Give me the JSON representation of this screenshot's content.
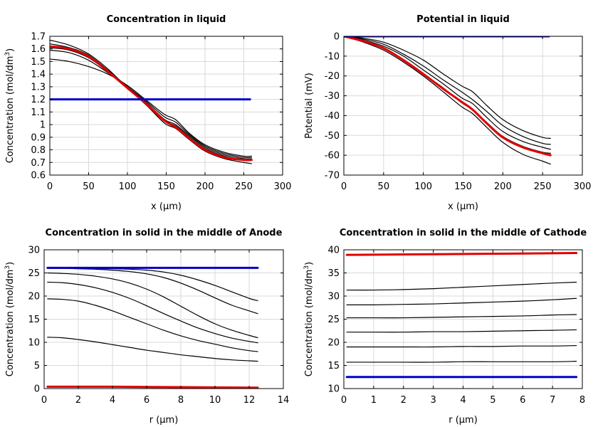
{
  "chart_data": [
    {
      "type": "line",
      "title": "Concentration in liquid",
      "xlabel": "x (µm)",
      "ylabel": "Concentration (mol/dm³)",
      "xlim": [
        0,
        300
      ],
      "ylim": [
        0.6,
        1.7
      ],
      "xticks": [
        0,
        50,
        100,
        150,
        200,
        250,
        300
      ],
      "yticks": [
        0.6,
        0.7,
        0.8,
        0.9,
        1,
        1.1,
        1.2,
        1.3,
        1.4,
        1.5,
        1.6,
        1.7
      ],
      "grid": true,
      "series": [
        {
          "color": "#000000",
          "width": 1.2,
          "x": [
            0,
            25,
            50,
            75,
            100,
            125,
            148,
            162,
            180,
            200,
            225,
            250,
            260
          ],
          "y": [
            1.52,
            1.5,
            1.46,
            1.4,
            1.31,
            1.19,
            1.08,
            1.04,
            0.93,
            0.84,
            0.78,
            0.75,
            0.75
          ]
        },
        {
          "color": "#000000",
          "width": 1.2,
          "x": [
            0,
            25,
            50,
            75,
            100,
            125,
            148,
            162,
            180,
            200,
            225,
            250,
            260
          ],
          "y": [
            1.59,
            1.57,
            1.51,
            1.41,
            1.3,
            1.18,
            1.06,
            1.02,
            0.92,
            0.83,
            0.77,
            0.74,
            0.74
          ]
        },
        {
          "color": "#000000",
          "width": 1.2,
          "x": [
            0,
            25,
            50,
            75,
            100,
            125,
            148,
            162,
            180,
            200,
            225,
            250,
            260
          ],
          "y": [
            1.61,
            1.59,
            1.53,
            1.42,
            1.3,
            1.17,
            1.04,
            1.0,
            0.91,
            0.82,
            0.76,
            0.73,
            0.73
          ]
        },
        {
          "color": "#000000",
          "width": 1.2,
          "x": [
            0,
            25,
            50,
            75,
            100,
            125,
            148,
            162,
            180,
            200,
            225,
            250,
            260
          ],
          "y": [
            1.64,
            1.61,
            1.55,
            1.43,
            1.3,
            1.16,
            1.03,
            0.99,
            0.9,
            0.81,
            0.75,
            0.72,
            0.72
          ]
        },
        {
          "color": "#000000",
          "width": 1.2,
          "x": [
            0,
            25,
            50,
            75,
            100,
            125,
            148,
            162,
            180,
            200,
            225,
            250,
            260
          ],
          "y": [
            1.67,
            1.63,
            1.56,
            1.44,
            1.29,
            1.15,
            1.01,
            0.97,
            0.88,
            0.79,
            0.73,
            0.7,
            0.69
          ]
        },
        {
          "color": "#e00000",
          "width": 3,
          "x": [
            0,
            25,
            50,
            75,
            100,
            125,
            148,
            162,
            180,
            200,
            225,
            250,
            260
          ],
          "y": [
            1.62,
            1.6,
            1.54,
            1.42,
            1.29,
            1.16,
            1.03,
            0.98,
            0.89,
            0.8,
            0.74,
            0.72,
            0.72
          ]
        },
        {
          "color": "#0000cc",
          "width": 3,
          "x": [
            0,
            50,
            100,
            150,
            200,
            250,
            258
          ],
          "y": [
            1.2,
            1.2,
            1.2,
            1.2,
            1.2,
            1.2,
            1.2
          ]
        }
      ]
    },
    {
      "type": "line",
      "title": "Potential in liquid",
      "xlabel": "x (µm)",
      "ylabel": "Potential (mV)",
      "xlim": [
        0,
        300
      ],
      "ylim": [
        -70,
        0
      ],
      "xticks": [
        0,
        50,
        100,
        150,
        200,
        250,
        300
      ],
      "yticks": [
        0,
        -10,
        -20,
        -30,
        -40,
        -50,
        -60,
        -70
      ],
      "grid": true,
      "series": [
        {
          "color": "#000000",
          "width": 1.2,
          "x": [
            0,
            25,
            50,
            75,
            100,
            125,
            148,
            162,
            180,
            200,
            225,
            250,
            260
          ],
          "y": [
            0,
            -1,
            -3,
            -7,
            -12,
            -19,
            -25,
            -28,
            -35,
            -42,
            -47.5,
            -51,
            -51.5
          ]
        },
        {
          "color": "#000000",
          "width": 1.2,
          "x": [
            0,
            25,
            50,
            75,
            100,
            125,
            148,
            162,
            180,
            200,
            225,
            250,
            260
          ],
          "y": [
            0,
            -1.5,
            -4,
            -9,
            -15,
            -22,
            -28,
            -32,
            -38,
            -45,
            -50.5,
            -54,
            -54.5
          ]
        },
        {
          "color": "#000000",
          "width": 1.2,
          "x": [
            0,
            25,
            50,
            75,
            100,
            125,
            148,
            162,
            180,
            200,
            225,
            250,
            260
          ],
          "y": [
            0,
            -2,
            -5,
            -10,
            -17,
            -24,
            -31,
            -34,
            -41,
            -48,
            -53,
            -56,
            -57
          ]
        },
        {
          "color": "#000000",
          "width": 1.2,
          "x": [
            0,
            25,
            50,
            75,
            100,
            125,
            148,
            162,
            180,
            200,
            225,
            250,
            260
          ],
          "y": [
            0,
            -2.5,
            -6,
            -12,
            -19,
            -26,
            -33.5,
            -37,
            -43.5,
            -50.5,
            -55.5,
            -58.5,
            -59
          ]
        },
        {
          "color": "#000000",
          "width": 1.2,
          "x": [
            0,
            25,
            50,
            75,
            100,
            125,
            148,
            162,
            180,
            200,
            225,
            250,
            260
          ],
          "y": [
            0,
            -3,
            -7,
            -13,
            -20,
            -28,
            -35.5,
            -39,
            -46,
            -53.5,
            -59.5,
            -63,
            -64.5
          ]
        },
        {
          "color": "#e00000",
          "width": 3,
          "x": [
            0,
            25,
            50,
            75,
            100,
            125,
            148,
            162,
            180,
            200,
            225,
            250,
            260
          ],
          "y": [
            0,
            -2.5,
            -6,
            -12,
            -19,
            -26.5,
            -33,
            -37,
            -44,
            -51,
            -56,
            -59,
            -60
          ]
        },
        {
          "color": "#0000cc",
          "width": 3,
          "x": [
            0,
            100,
            200,
            258
          ],
          "y": [
            0,
            0,
            0,
            0
          ]
        }
      ]
    },
    {
      "type": "line",
      "title": "Concentration in solid in the middle of Anode",
      "xlabel": "r (µm)",
      "ylabel": "Concentration (mol/dm³)",
      "xlim": [
        0,
        14
      ],
      "ylim": [
        0,
        30
      ],
      "xticks": [
        0,
        2,
        4,
        6,
        8,
        10,
        12,
        14
      ],
      "yticks": [
        0,
        5,
        10,
        15,
        20,
        25,
        30
      ],
      "grid": true,
      "series": [
        {
          "color": "#000000",
          "width": 1.2,
          "x": [
            0.2,
            1,
            2,
            3,
            4,
            5,
            6,
            7,
            8,
            9,
            10,
            11,
            12,
            12.5
          ],
          "y": [
            26,
            26,
            26,
            25.9,
            25.9,
            25.8,
            25.6,
            25.2,
            24.5,
            23.5,
            22.3,
            20.9,
            19.5,
            19
          ]
        },
        {
          "color": "#000000",
          "width": 1.2,
          "x": [
            0.2,
            1,
            2,
            3,
            4,
            5,
            6,
            7,
            8,
            9,
            10,
            11,
            12,
            12.5
          ],
          "y": [
            26,
            26,
            25.9,
            25.8,
            25.6,
            25.3,
            24.8,
            24,
            22.8,
            21.3,
            19.6,
            18,
            16.8,
            16.2
          ]
        },
        {
          "color": "#000000",
          "width": 1.2,
          "x": [
            0.2,
            1,
            2,
            3,
            4,
            5,
            6,
            7,
            8,
            9,
            10,
            11,
            12,
            12.5
          ],
          "y": [
            25,
            24.9,
            24.7,
            24.3,
            23.7,
            22.8,
            21.5,
            19.8,
            17.8,
            15.8,
            14,
            12.6,
            11.5,
            11
          ]
        },
        {
          "color": "#000000",
          "width": 1.2,
          "x": [
            0.2,
            1,
            2,
            3,
            4,
            5,
            6,
            7,
            8,
            9,
            10,
            11,
            12,
            12.5
          ],
          "y": [
            23,
            22.9,
            22.5,
            21.8,
            20.8,
            19.5,
            17.9,
            16.2,
            14.6,
            13.1,
            11.9,
            10.9,
            10.2,
            9.9
          ]
        },
        {
          "color": "#000000",
          "width": 1.2,
          "x": [
            0.2,
            1,
            2,
            3,
            4,
            5,
            6,
            7,
            8,
            9,
            10,
            11,
            12,
            12.5
          ],
          "y": [
            19.4,
            19.3,
            18.9,
            18,
            16.8,
            15.4,
            14,
            12.6,
            11.4,
            10.4,
            9.6,
            8.8,
            8.2,
            8
          ]
        },
        {
          "color": "#000000",
          "width": 1.2,
          "x": [
            0.2,
            1,
            2,
            3,
            4,
            5,
            6,
            7,
            8,
            9,
            10,
            11,
            12,
            12.5
          ],
          "y": [
            11.1,
            11,
            10.6,
            10.1,
            9.5,
            8.9,
            8.3,
            7.8,
            7.3,
            6.9,
            6.5,
            6.2,
            6,
            5.9
          ]
        },
        {
          "color": "#e00000",
          "width": 3,
          "x": [
            0.2,
            2,
            4,
            6,
            8,
            10,
            12.5
          ],
          "y": [
            0.4,
            0.4,
            0.4,
            0.35,
            0.3,
            0.25,
            0.2
          ]
        },
        {
          "color": "#0000cc",
          "width": 3,
          "x": [
            0.2,
            4,
            8,
            12.5
          ],
          "y": [
            26.1,
            26.1,
            26.1,
            26.1
          ]
        }
      ]
    },
    {
      "type": "line",
      "title": "Concentration in solid in the middle of Cathode",
      "xlabel": "r (µm)",
      "ylabel": "Concentration (mol/dm³)",
      "xlim": [
        0,
        8
      ],
      "ylim": [
        10,
        40
      ],
      "xticks": [
        0,
        1,
        2,
        3,
        4,
        5,
        6,
        7,
        8
      ],
      "yticks": [
        10,
        15,
        20,
        25,
        30,
        35,
        40
      ],
      "grid": true,
      "series": [
        {
          "color": "#000000",
          "width": 1.2,
          "x": [
            0.1,
            1,
            2,
            3,
            4,
            5,
            6,
            7,
            7.8
          ],
          "y": [
            31.3,
            31.3,
            31.4,
            31.6,
            31.9,
            32.2,
            32.5,
            32.8,
            33
          ]
        },
        {
          "color": "#000000",
          "width": 1.2,
          "x": [
            0.1,
            1,
            2,
            3,
            4,
            5,
            6,
            7,
            7.8
          ],
          "y": [
            28.1,
            28.1,
            28.2,
            28.3,
            28.5,
            28.7,
            28.9,
            29.2,
            29.5
          ]
        },
        {
          "color": "#000000",
          "width": 1.2,
          "x": [
            0.1,
            1,
            2,
            3,
            4,
            5,
            6,
            7,
            7.8
          ],
          "y": [
            25.3,
            25.3,
            25.3,
            25.4,
            25.5,
            25.6,
            25.7,
            25.9,
            26
          ]
        },
        {
          "color": "#000000",
          "width": 1.2,
          "x": [
            0.1,
            1,
            2,
            3,
            4,
            5,
            6,
            7,
            7.8
          ],
          "y": [
            22.2,
            22.2,
            22.2,
            22.3,
            22.3,
            22.4,
            22.5,
            22.6,
            22.7
          ]
        },
        {
          "color": "#000000",
          "width": 1.2,
          "x": [
            0.1,
            1,
            2,
            3,
            4,
            5,
            6,
            7,
            7.8
          ],
          "y": [
            19,
            19,
            19,
            19,
            19.1,
            19.1,
            19.2,
            19.2,
            19.3
          ]
        },
        {
          "color": "#000000",
          "width": 1.2,
          "x": [
            0.1,
            1,
            2,
            3,
            4,
            5,
            6,
            7,
            7.8
          ],
          "y": [
            15.7,
            15.7,
            15.7,
            15.7,
            15.8,
            15.8,
            15.8,
            15.8,
            15.9
          ]
        },
        {
          "color": "#e00000",
          "width": 3,
          "x": [
            0.1,
            2,
            4,
            6,
            7.8
          ],
          "y": [
            38.9,
            39,
            39.1,
            39.2,
            39.3
          ]
        },
        {
          "color": "#0000cc",
          "width": 3,
          "x": [
            0.1,
            2,
            4,
            6,
            7.8
          ],
          "y": [
            12.5,
            12.5,
            12.5,
            12.5,
            12.5
          ]
        }
      ]
    }
  ]
}
